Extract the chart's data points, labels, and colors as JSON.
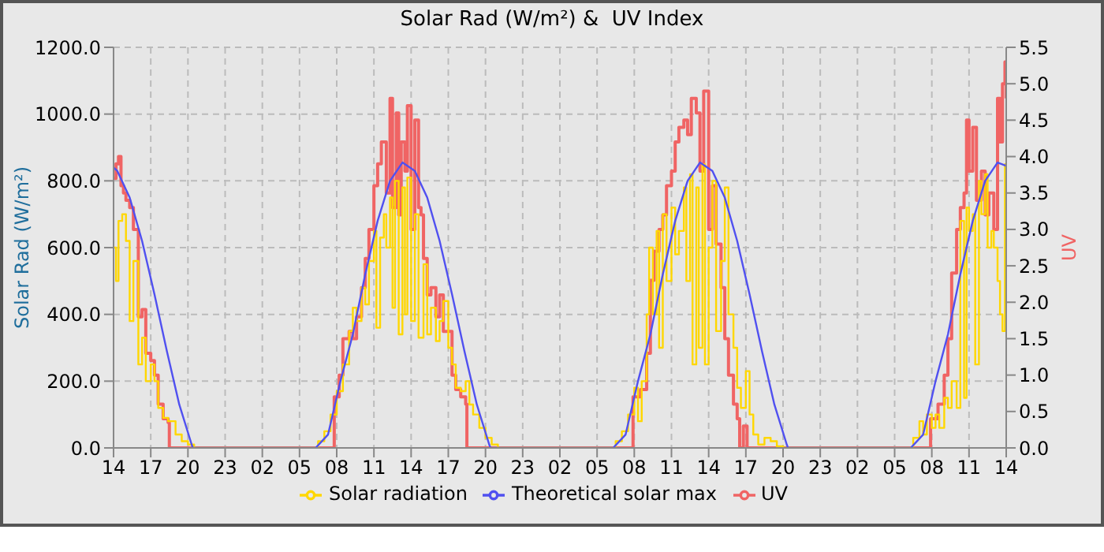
{
  "chart_data": {
    "type": "line",
    "title": "Solar Rad (W/m²) &  UV Index",
    "ylabel": "Solar Rad (W/m²)",
    "y2label": "UV",
    "xlim": [
      "--01-01T14:00",
      "--01-04T14:00"
    ],
    "xticks": [
      {
        "value": "--01-01T14:00",
        "label": "14"
      },
      {
        "value": "--01-01T17:00",
        "label": "17"
      },
      {
        "value": "--01-01T20:00",
        "label": "20"
      },
      {
        "value": "--01-01T23:00",
        "label": "23"
      },
      {
        "value": "--01-02T02:00",
        "label": "02"
      },
      {
        "value": "--01-02T05:00",
        "label": "05"
      },
      {
        "value": "--01-02T08:00",
        "label": "08"
      },
      {
        "value": "--01-02T11:00",
        "label": "11"
      },
      {
        "value": "--01-02T14:00",
        "label": "14"
      },
      {
        "value": "--01-02T17:00",
        "label": "17"
      },
      {
        "value": "--01-02T20:00",
        "label": "20"
      },
      {
        "value": "--01-02T23:00",
        "label": "23"
      },
      {
        "value": "--01-03T02:00",
        "label": "02"
      },
      {
        "value": "--01-03T05:00",
        "label": "05"
      },
      {
        "value": "--01-03T08:00",
        "label": "08"
      },
      {
        "value": "--01-03T11:00",
        "label": "11"
      },
      {
        "value": "--01-03T14:00",
        "label": "14"
      },
      {
        "value": "--01-03T17:00",
        "label": "17"
      },
      {
        "value": "--01-03T20:00",
        "label": "20"
      },
      {
        "value": "--01-03T23:00",
        "label": "23"
      },
      {
        "value": "--01-04T02:00",
        "label": "02"
      },
      {
        "value": "--01-04T05:00",
        "label": "05"
      },
      {
        "value": "--01-04T08:00",
        "label": "08"
      },
      {
        "value": "--01-04T11:00",
        "label": "11"
      },
      {
        "value": "--01-04T14:00",
        "label": "14"
      }
    ],
    "ylim": [
      0,
      1200
    ],
    "yticks": [
      {
        "value": 0,
        "label": "0.0"
      },
      {
        "value": 200,
        "label": "200.0"
      },
      {
        "value": 400,
        "label": "400.0"
      },
      {
        "value": 600,
        "label": "600.0"
      },
      {
        "value": 800,
        "label": "800.0"
      },
      {
        "value": 1000,
        "label": "1000.0"
      },
      {
        "value": 1200,
        "label": "1200.0"
      }
    ],
    "y2lim": [
      0,
      5.5
    ],
    "y2ticks": [
      {
        "value": 0,
        "label": "0.0"
      },
      {
        "value": 0.5,
        "label": "0.5"
      },
      {
        "value": 1,
        "label": "1.0"
      },
      {
        "value": 1.5,
        "label": "1.5"
      },
      {
        "value": 2,
        "label": "2.0"
      },
      {
        "value": 2.5,
        "label": "2.5"
      },
      {
        "value": 3,
        "label": "3.0"
      },
      {
        "value": 3.5,
        "label": "3.5"
      },
      {
        "value": 4,
        "label": "4.0"
      },
      {
        "value": 4.5,
        "label": "4.5"
      },
      {
        "value": 5,
        "label": "5.0"
      },
      {
        "value": 5.5,
        "label": "5.5"
      }
    ],
    "grid": true,
    "legend": "bottom",
    "marker": "none",
    "line_style": "solid",
    "series": [
      {
        "name": "UV",
        "type": "step",
        "axis": "y2",
        "color": "#f06464",
        "x": [
          "--01-01T14:00",
          "--01-01T14:12",
          "--01-01T14:24",
          "--01-01T14:36",
          "--01-01T14:48",
          "--01-01T15:00",
          "--01-01T15:18",
          "--01-01T15:36",
          "--01-01T16:00",
          "--01-01T16:18",
          "--01-01T16:36",
          "--01-01T17:00",
          "--01-01T17:18",
          "--01-01T17:36",
          "--01-01T18:00",
          "--01-01T18:24",
          "--01-01T18:30",
          "--01-02T07:42",
          "--01-02T07:48",
          "--01-02T08:12",
          "--01-02T08:30",
          "--01-02T09:00",
          "--01-02T09:18",
          "--01-02T09:36",
          "--01-02T10:00",
          "--01-02T10:18",
          "--01-02T10:36",
          "--01-02T11:00",
          "--01-02T11:18",
          "--01-02T11:36",
          "--01-02T12:00",
          "--01-02T12:18",
          "--01-02T12:30",
          "--01-02T12:48",
          "--01-02T13:00",
          "--01-02T13:12",
          "--01-02T13:30",
          "--01-02T13:42",
          "--01-02T14:00",
          "--01-02T14:18",
          "--01-02T14:36",
          "--01-02T14:48",
          "--01-02T15:00",
          "--01-02T15:18",
          "--01-02T15:36",
          "--01-02T16:00",
          "--01-02T16:18",
          "--01-02T16:36",
          "--01-02T17:00",
          "--01-02T17:18",
          "--01-02T17:36",
          "--01-02T18:00",
          "--01-02T18:24",
          "--01-02T18:30",
          "--01-03T07:48",
          "--01-03T07:54",
          "--01-03T08:30",
          "--01-03T09:00",
          "--01-03T09:18",
          "--01-03T09:36",
          "--01-03T10:00",
          "--01-03T10:18",
          "--01-03T10:36",
          "--01-03T11:00",
          "--01-03T11:18",
          "--01-03T11:36",
          "--01-03T12:00",
          "--01-03T12:18",
          "--01-03T12:36",
          "--01-03T13:00",
          "--01-03T13:18",
          "--01-03T13:36",
          "--01-03T14:00",
          "--01-03T14:18",
          "--01-03T14:36",
          "--01-03T15:00",
          "--01-03T15:18",
          "--01-03T15:36",
          "--01-03T16:00",
          "--01-03T16:18",
          "--01-03T16:30",
          "--01-03T16:48",
          "--01-03T17:06",
          "--01-04T07:48",
          "--01-04T07:54",
          "--01-04T08:30",
          "--01-04T09:00",
          "--01-04T09:18",
          "--01-04T09:36",
          "--01-04T10:00",
          "--01-04T10:18",
          "--01-04T10:36",
          "--01-04T10:48",
          "--01-04T11:00",
          "--01-04T11:18",
          "--01-04T11:36",
          "--01-04T12:00",
          "--01-04T12:18",
          "--01-04T12:36",
          "--01-04T13:00",
          "--01-04T13:18",
          "--01-04T13:30",
          "--01-04T13:42",
          "--01-04T13:54",
          "--01-04T14:00"
        ],
        "values": [
          3.7,
          3.9,
          4.0,
          3.6,
          3.5,
          3.4,
          3.3,
          3.0,
          1.8,
          1.9,
          1.3,
          1.2,
          1.0,
          0.6,
          0.4,
          0.35,
          0,
          0,
          0.7,
          1.0,
          1.5,
          1.6,
          1.5,
          1.8,
          2.2,
          2.6,
          3.0,
          3.6,
          3.9,
          4.2,
          3.5,
          4.8,
          3.3,
          4.6,
          3.2,
          4.2,
          3.8,
          4.7,
          3.0,
          4.5,
          3.3,
          3.2,
          2.6,
          2.1,
          2.2,
          1.8,
          2.1,
          1.6,
          1.6,
          1.0,
          0.8,
          0.7,
          0.6,
          0,
          0,
          0.7,
          0.8,
          1.3,
          2.3,
          2.7,
          3.0,
          3.2,
          3.6,
          3.8,
          4.2,
          4.4,
          4.5,
          4.3,
          4.8,
          4.6,
          3.8,
          4.9,
          3.0,
          3.6,
          2.8,
          2.2,
          1.5,
          1.0,
          0.6,
          0.4,
          0,
          0.3,
          0,
          0,
          0.4,
          0.6,
          1.0,
          1.5,
          2.4,
          3.0,
          3.3,
          3.5,
          4.5,
          3.8,
          4.4,
          3.4,
          3.8,
          3.2,
          3.5,
          3.0,
          4.8,
          4.2,
          5.0,
          5.3,
          4.8
        ]
      },
      {
        "name": "Solar radiation",
        "type": "step",
        "color": "#ffd700",
        "x": [
          "--01-01T14:00",
          "--01-01T14:12",
          "--01-01T14:24",
          "--01-01T14:42",
          "--01-01T15:00",
          "--01-01T15:18",
          "--01-01T15:36",
          "--01-01T16:00",
          "--01-01T16:18",
          "--01-01T16:36",
          "--01-01T17:00",
          "--01-01T17:18",
          "--01-01T17:36",
          "--01-01T18:00",
          "--01-01T18:24",
          "--01-01T19:00",
          "--01-01T19:30",
          "--01-01T20:00",
          "--01-01T20:30",
          "--01-02T06:00",
          "--01-02T06:30",
          "--01-02T07:00",
          "--01-02T07:30",
          "--01-02T08:00",
          "--01-02T08:30",
          "--01-02T09:00",
          "--01-02T09:18",
          "--01-02T09:36",
          "--01-02T10:00",
          "--01-02T10:18",
          "--01-02T10:36",
          "--01-02T11:00",
          "--01-02T11:12",
          "--01-02T11:30",
          "--01-02T11:48",
          "--01-02T12:00",
          "--01-02T12:18",
          "--01-02T12:30",
          "--01-02T12:42",
          "--01-02T13:00",
          "--01-02T13:18",
          "--01-02T13:30",
          "--01-02T13:42",
          "--01-02T14:00",
          "--01-02T14:18",
          "--01-02T14:36",
          "--01-02T15:00",
          "--01-02T15:18",
          "--01-02T15:36",
          "--01-02T16:00",
          "--01-02T16:18",
          "--01-02T16:36",
          "--01-02T17:00",
          "--01-02T17:18",
          "--01-02T17:36",
          "--01-02T18:00",
          "--01-02T18:24",
          "--01-02T18:42",
          "--01-02T19:00",
          "--01-02T19:30",
          "--01-02T20:00",
          "--01-02T20:30",
          "--01-02T21:00",
          "--01-03T06:00",
          "--01-03T06:30",
          "--01-03T07:00",
          "--01-03T07:30",
          "--01-03T08:00",
          "--01-03T08:18",
          "--01-03T08:36",
          "--01-03T09:00",
          "--01-03T09:12",
          "--01-03T09:30",
          "--01-03T09:48",
          "--01-03T10:00",
          "--01-03T10:18",
          "--01-03T10:36",
          "--01-03T11:00",
          "--01-03T11:18",
          "--01-03T11:36",
          "--01-03T12:00",
          "--01-03T12:12",
          "--01-03T12:30",
          "--01-03T12:42",
          "--01-03T13:00",
          "--01-03T13:12",
          "--01-03T13:30",
          "--01-03T13:42",
          "--01-03T14:00",
          "--01-03T14:18",
          "--01-03T14:36",
          "--01-03T15:00",
          "--01-03T15:18",
          "--01-03T15:36",
          "--01-03T16:00",
          "--01-03T16:18",
          "--01-03T16:36",
          "--01-03T17:00",
          "--01-03T17:18",
          "--01-03T17:36",
          "--01-03T18:00",
          "--01-03T18:30",
          "--01-03T19:00",
          "--01-03T19:30",
          "--01-03T20:00",
          "--01-04T06:00",
          "--01-04T06:30",
          "--01-04T07:00",
          "--01-04T07:18",
          "--01-04T07:36",
          "--01-04T08:00",
          "--01-04T08:18",
          "--01-04T08:36",
          "--01-04T09:00",
          "--01-04T09:18",
          "--01-04T09:36",
          "--01-04T10:00",
          "--01-04T10:18",
          "--01-04T10:36",
          "--01-04T10:48",
          "--01-04T11:00",
          "--01-04T11:18",
          "--01-04T11:30",
          "--01-04T11:48",
          "--01-04T12:00",
          "--01-04T12:18",
          "--01-04T12:30",
          "--01-04T12:48",
          "--01-04T13:00",
          "--01-04T13:18",
          "--01-04T13:30",
          "--01-04T13:42",
          "--01-04T13:54",
          "--01-04T14:00"
        ],
        "values": [
          600,
          500,
          680,
          700,
          620,
          380,
          560,
          250,
          330,
          200,
          250,
          200,
          120,
          90,
          80,
          40,
          20,
          10,
          0,
          0,
          20,
          50,
          100,
          170,
          250,
          350,
          420,
          380,
          480,
          430,
          560,
          650,
          360,
          630,
          700,
          600,
          750,
          420,
          800,
          340,
          780,
          400,
          810,
          380,
          700,
          330,
          550,
          340,
          420,
          320,
          380,
          440,
          300,
          250,
          180,
          170,
          200,
          130,
          100,
          60,
          30,
          10,
          0,
          0,
          20,
          50,
          100,
          180,
          80,
          200,
          400,
          600,
          400,
          650,
          300,
          700,
          500,
          720,
          580,
          650,
          780,
          500,
          820,
          250,
          780,
          300,
          850,
          250,
          600,
          800,
          350,
          560,
          780,
          400,
          300,
          180,
          120,
          230,
          100,
          40,
          10,
          30,
          20,
          5,
          0,
          0,
          30,
          80,
          40,
          100,
          60,
          100,
          60,
          150,
          120,
          200,
          120,
          680,
          150,
          720,
          650,
          700,
          250,
          800,
          700,
          820,
          600,
          650,
          600,
          500,
          400,
          350,
          850,
          800
        ]
      },
      {
        "name": "Theoretical solar max",
        "type": "line",
        "color": "#5050f0",
        "x": [
          "--01-01T14:00",
          "--01-01T14:18",
          "--01-01T15:18",
          "--01-01T16:18",
          "--01-01T17:18",
          "--01-01T18:18",
          "--01-01T19:18",
          "--01-01T20:18",
          "--01-01T20:24",
          "--01-02T06:18",
          "--01-02T07:18",
          "--01-02T08:18",
          "--01-02T09:18",
          "--01-02T10:18",
          "--01-02T11:18",
          "--01-02T12:18",
          "--01-02T13:18",
          "--01-02T14:18",
          "--01-02T15:18",
          "--01-02T16:18",
          "--01-02T17:18",
          "--01-02T18:18",
          "--01-02T19:18",
          "--01-02T20:18",
          "--01-02T20:24",
          "--01-03T06:18",
          "--01-03T07:18",
          "--01-03T08:18",
          "--01-03T09:18",
          "--01-03T10:18",
          "--01-03T11:18",
          "--01-03T12:18",
          "--01-03T13:18",
          "--01-03T14:18",
          "--01-03T15:18",
          "--01-03T16:18",
          "--01-03T17:18",
          "--01-03T18:18",
          "--01-03T19:18",
          "--01-03T20:18",
          "--01-03T20:24",
          "--01-04T06:18",
          "--01-04T07:18",
          "--01-04T08:18",
          "--01-04T09:18",
          "--01-04T10:18",
          "--01-04T11:18",
          "--01-04T12:18",
          "--01-04T13:18",
          "--01-04T14:00"
        ],
        "values": [
          840,
          830,
          750,
          620,
          460,
          290,
          130,
          10,
          0,
          0,
          40,
          200,
          340,
          520,
          680,
          800,
          855,
          830,
          750,
          620,
          460,
          290,
          130,
          10,
          0,
          0,
          40,
          200,
          340,
          520,
          680,
          800,
          855,
          830,
          750,
          620,
          460,
          290,
          130,
          10,
          0,
          0,
          40,
          200,
          340,
          520,
          680,
          800,
          855,
          845
        ]
      }
    ]
  }
}
